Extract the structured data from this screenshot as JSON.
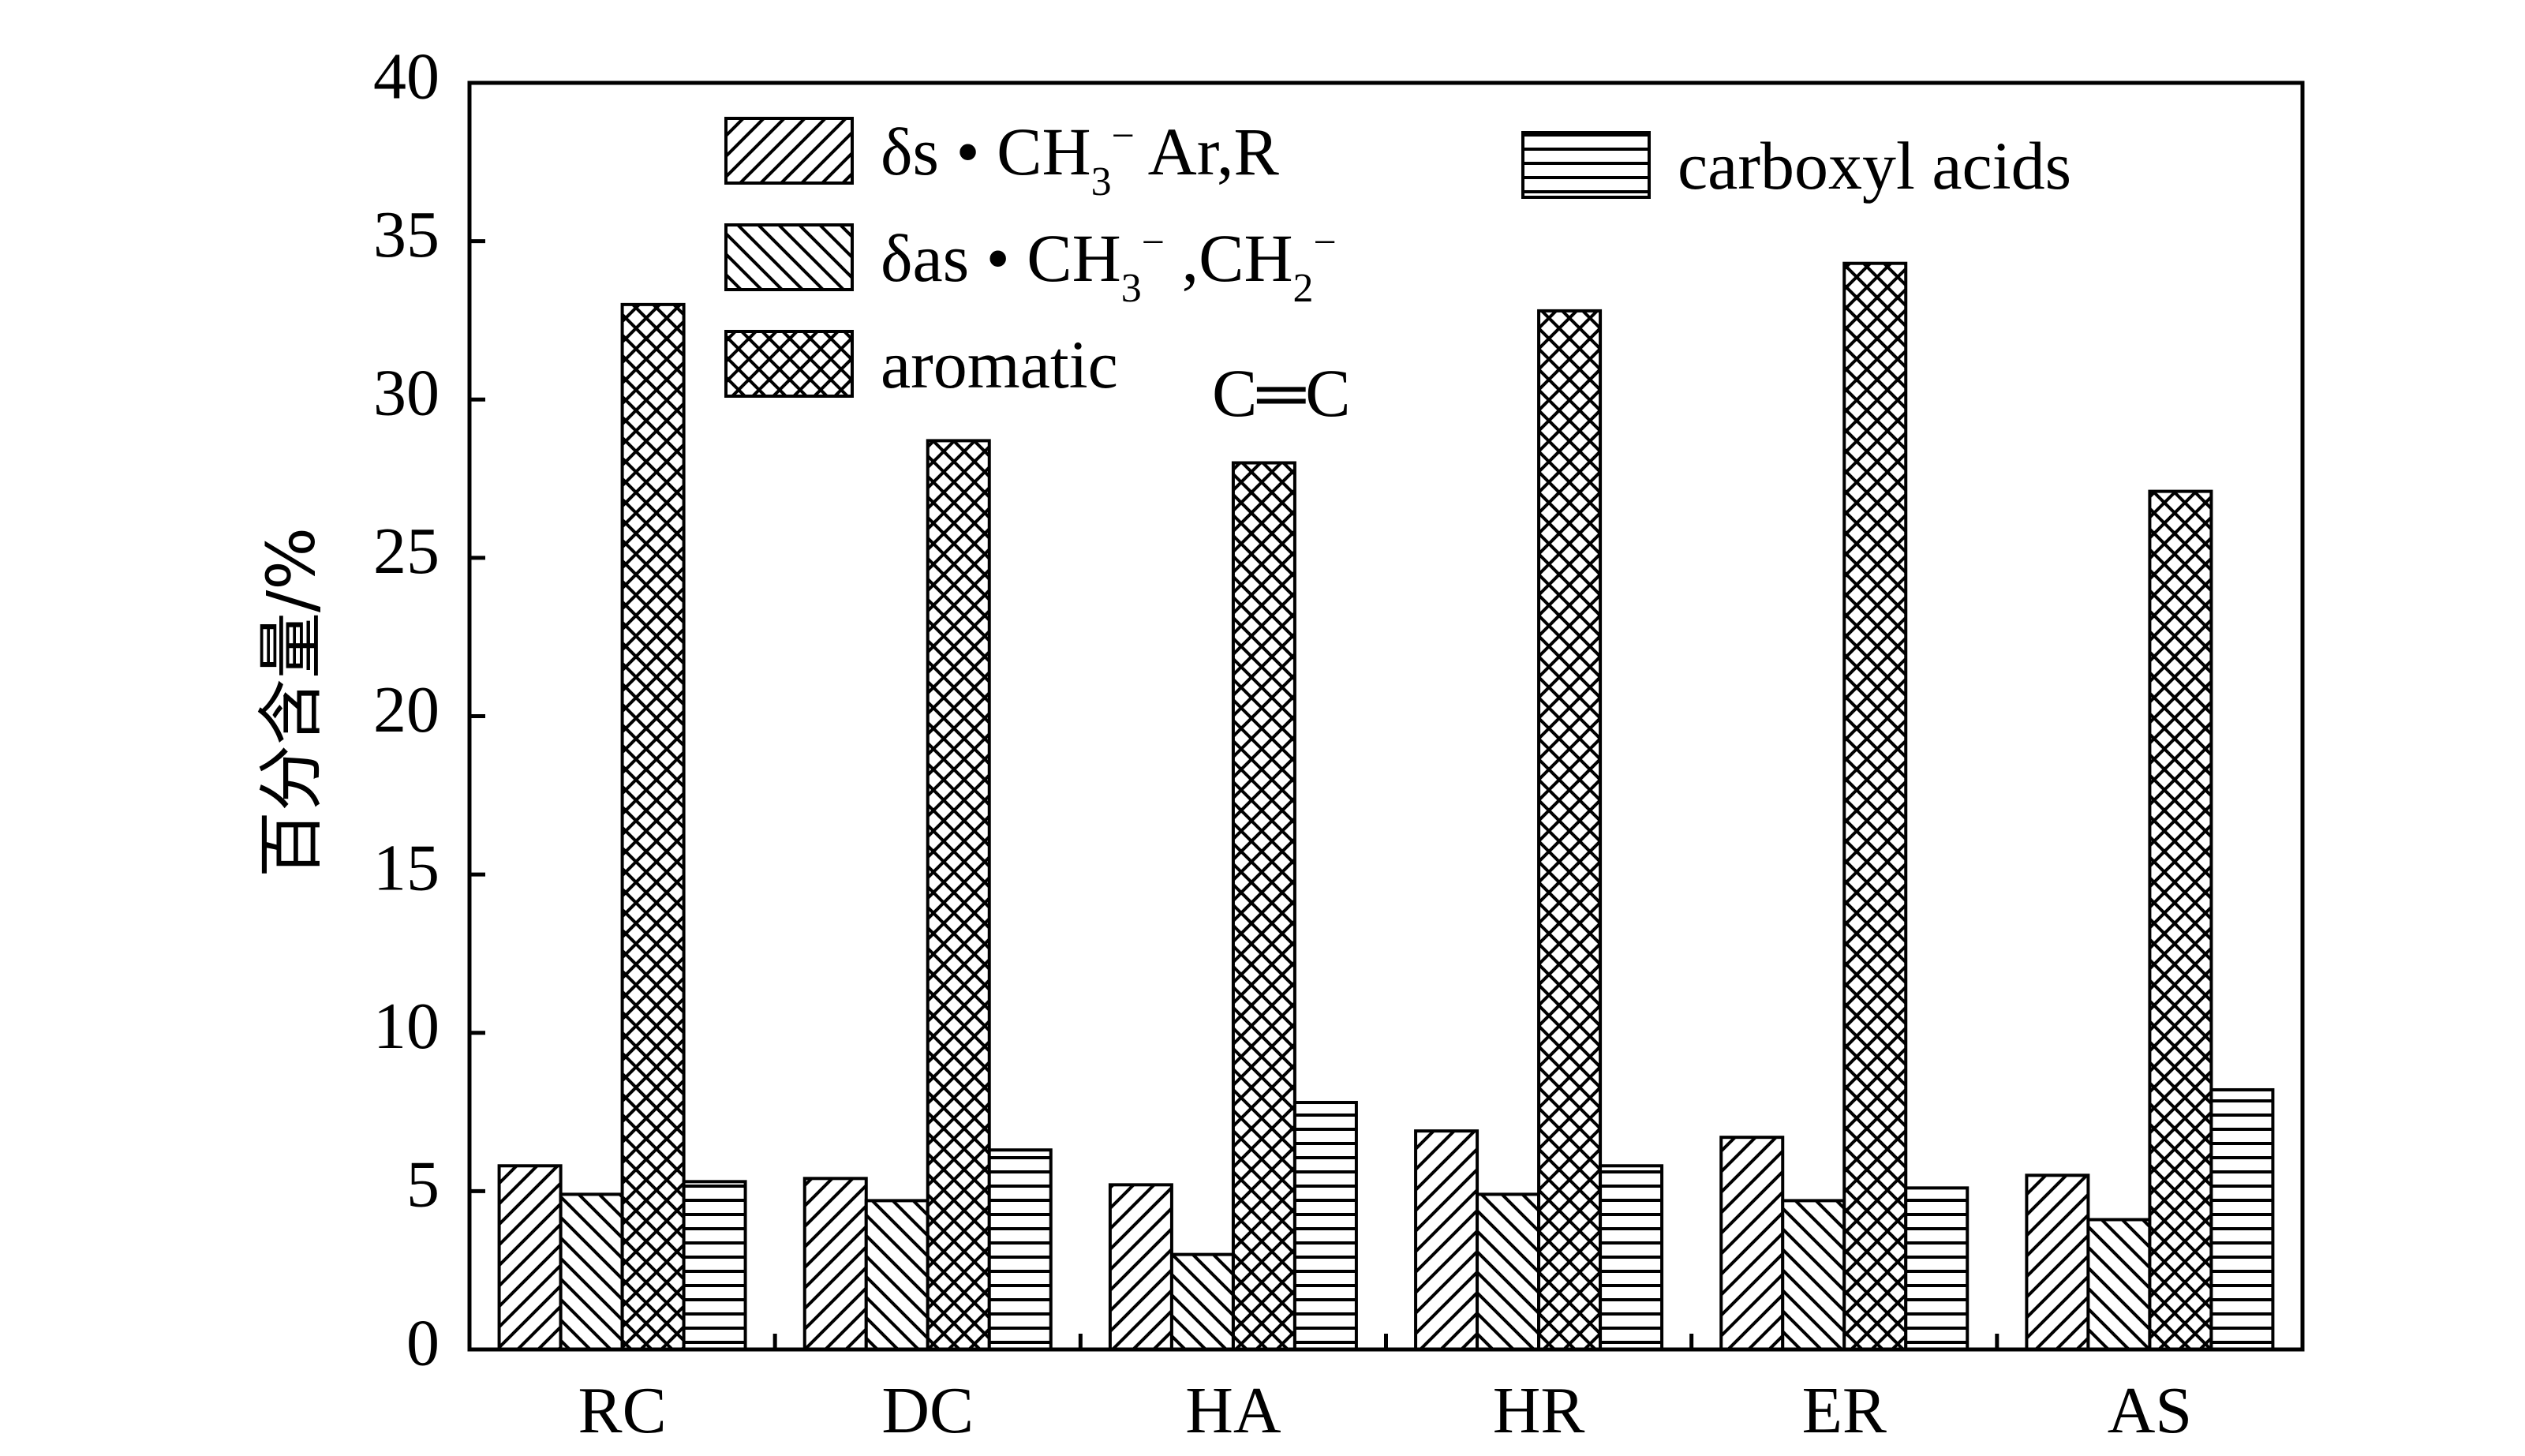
{
  "chart_data": {
    "type": "bar",
    "ylabel": "百分含量/%",
    "ylim": [
      0,
      40
    ],
    "yticks": [
      0,
      5,
      10,
      15,
      20,
      25,
      30,
      35,
      40
    ],
    "categories": [
      "RC",
      "DC",
      "HA",
      "HR",
      "ER",
      "AS"
    ],
    "series": [
      {
        "name": "δs • CH3− Ar,R",
        "pattern": "hatch-forward",
        "values": [
          5.8,
          5.4,
          5.2,
          6.9,
          6.7,
          5.5
        ],
        "legend_parts": {
          "main": "δs • CH",
          "sub": "3",
          "sup": "−",
          "rest": " Ar,R"
        }
      },
      {
        "name": "δas • CH3− ,CH2−",
        "pattern": "hatch-back",
        "values": [
          4.9,
          4.7,
          3.0,
          4.9,
          4.7,
          4.1
        ],
        "legend_parts": {
          "main": "δas • CH",
          "sub": "3",
          "sup": "−",
          "mid": " ,CH",
          "sub2": "2",
          "sup2": "−"
        }
      },
      {
        "name": "aromatic C═C",
        "pattern": "crosshatch",
        "values": [
          33.0,
          28.7,
          28.0,
          32.8,
          34.3,
          27.1
        ],
        "legend_parts": {
          "main": "aromatic",
          "formula": "C═C"
        }
      },
      {
        "name": "carboxyl acids",
        "pattern": "horizontal",
        "values": [
          5.3,
          6.3,
          7.8,
          5.8,
          5.1,
          8.2
        ],
        "legend_parts": {
          "main": "carboxyl acids"
        }
      }
    ],
    "legend_position": "top",
    "grid": false,
    "colors": {
      "bar_fill": "#ffffff",
      "stroke": "#000000"
    }
  }
}
